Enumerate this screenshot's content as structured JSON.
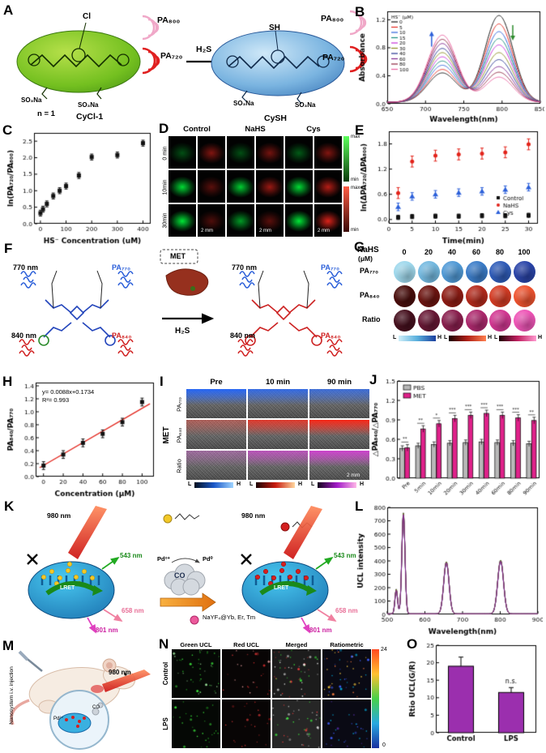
{
  "panels": {
    "A": {
      "label": "A",
      "pa800": "PA₈₀₀",
      "pa720": "PA₇₂₀",
      "cl": "Cl",
      "sh": "SH",
      "h2s": "H₂S",
      "so3na": "SO₃Na",
      "n1": "n = 1",
      "cycl1": "CyCl-1",
      "cysh": "CySH"
    },
    "B": {
      "label": "B"
    },
    "C": {
      "label": "C"
    },
    "D": {
      "label": "D",
      "cols": [
        "Control",
        "NaHS",
        "Cys"
      ],
      "rows": [
        "0 min",
        "10min",
        "30min"
      ],
      "max": "max",
      "min": "min",
      "scale": "2 mm"
    },
    "E": {
      "label": "E"
    },
    "F": {
      "label": "F",
      "nm770": "770 nm",
      "nm840": "840 nm",
      "pa770": "PA₇₇₀",
      "pa840": "PA₈₄₀",
      "met": "MET",
      "h2s": "H₂S"
    },
    "G": {
      "label": "G",
      "header1": "NaHS",
      "header2": "(μM)",
      "concs": [
        "0",
        "20",
        "40",
        "60",
        "80",
        "100"
      ],
      "rows": [
        "PA₇₇₀",
        "PA₈₄₀",
        "Ratio"
      ],
      "l": "L",
      "h": "H"
    },
    "H": {
      "label": "H",
      "eq": "y= 0.0088x+0.1734",
      "r2": "R²= 0.993"
    },
    "I": {
      "label": "I",
      "cols": [
        "Pre",
        "10 min",
        "90 min"
      ],
      "rows": [
        "PA₇₇₀",
        "PA₈₄₀",
        "Ratio"
      ],
      "met": "MET",
      "scale": "2 mm",
      "l": "L",
      "h": "H"
    },
    "J": {
      "label": "J"
    },
    "K": {
      "label": "K",
      "nm980": "980 nm",
      "lret": "LRET",
      "nm543": "543 nm",
      "nm658": "658 nm",
      "nm801": "801 nm",
      "co": "CO",
      "pd2": "Pd²⁺",
      "pd0": "Pd⁰",
      "np": "NaYF₄@Yb, Er, Tm"
    },
    "L": {
      "label": "L"
    },
    "M": {
      "label": "M",
      "inject": "Nanosystem i.v. injection",
      "nm980": "980 nm",
      "pd2": "Pd²⁺",
      "co": "CO"
    },
    "N": {
      "label": "N",
      "cols": [
        "Green UCL",
        "Red UCL",
        "Merged",
        "Ratiometric"
      ],
      "rows": [
        "Control",
        "LPS"
      ],
      "cmax": "24",
      "cmin": "0"
    },
    "O": {
      "label": "O"
    }
  },
  "chart_data": [
    {
      "id": "chartB",
      "type": "spectra",
      "xlabel": "Wavelength(nm)",
      "ylabel": "Absorbance",
      "xlim": [
        650,
        850
      ],
      "ylim": [
        0,
        1.32
      ],
      "xticks": [
        650,
        700,
        750,
        800,
        850
      ],
      "yticks": [
        0.0,
        0.4,
        0.8,
        1.2
      ],
      "ydec": 1,
      "base": 0.02,
      "legend_title": "HS⁻ (μM)",
      "centers": [
        722,
        796
      ],
      "widths": [
        27,
        26
      ],
      "series": [
        {
          "name": "0",
          "color": "#111111",
          "amps": [
            0.42,
            1.24
          ]
        },
        {
          "name": "5",
          "color": "#e2231a",
          "amps": [
            0.47,
            1.12
          ]
        },
        {
          "name": "10",
          "color": "#2b5fd9",
          "amps": [
            0.53,
            1.01
          ]
        },
        {
          "name": "15",
          "color": "#11897a",
          "amps": [
            0.59,
            0.91
          ]
        },
        {
          "name": "20",
          "color": "#c52bd9",
          "amps": [
            0.65,
            0.82
          ]
        },
        {
          "name": "30",
          "color": "#8a8a1e",
          "amps": [
            0.71,
            0.71
          ]
        },
        {
          "name": "40",
          "color": "#20308f",
          "amps": [
            0.77,
            0.61
          ]
        },
        {
          "name": "60",
          "color": "#7a1f8a",
          "amps": [
            0.84,
            0.51
          ]
        },
        {
          "name": "80",
          "color": "#8a1f3a",
          "amps": [
            0.9,
            0.43
          ]
        },
        {
          "name": "100",
          "color": "#e85d9c",
          "amps": [
            0.96,
            0.36
          ]
        }
      ],
      "arrows": [
        {
          "x": 708,
          "y": 0.92,
          "dir": "up",
          "color": "#2b5fd9"
        },
        {
          "x": 814,
          "y": 1.02,
          "dir": "down",
          "color": "#2e8b2e"
        }
      ]
    },
    {
      "id": "chartC",
      "type": "scatter",
      "xlabel": "HS⁻ Concentration (uM)",
      "ylabel": "ln(PA₇₂₀/PA₈₀₀)",
      "xlim": [
        -25,
        430
      ],
      "ylim": [
        0,
        2.75
      ],
      "xticks": [
        0,
        100,
        200,
        300,
        400
      ],
      "yticks": [
        0.0,
        0.5,
        1.0,
        1.5,
        2.0,
        2.5
      ],
      "ydec": 1,
      "series": [
        {
          "name": "data",
          "color": "#111111",
          "marker": "square",
          "err": 0.09,
          "points": [
            [
              0,
              0.32
            ],
            [
              10,
              0.44
            ],
            [
              25,
              0.6
            ],
            [
              50,
              0.84
            ],
            [
              75,
              1.0
            ],
            [
              100,
              1.14
            ],
            [
              150,
              1.46
            ],
            [
              200,
              2.02
            ],
            [
              300,
              2.08
            ],
            [
              400,
              2.44
            ]
          ]
        }
      ]
    },
    {
      "id": "chartE",
      "type": "scatter",
      "xlabel": "Time(min)",
      "ylabel": "ln(ΔPA₇₂₀/ΔPA₈₀₀)",
      "xlim": [
        0,
        32
      ],
      "ylim": [
        -0.1,
        2.1
      ],
      "xticks": [
        0,
        5,
        10,
        15,
        20,
        25,
        30
      ],
      "yticks": [
        0.0,
        0.6,
        1.2,
        1.8
      ],
      "ydec": 1,
      "legend": "br",
      "series": [
        {
          "name": "Control",
          "color": "#111111",
          "marker": "square",
          "err": 0.05,
          "points": [
            [
              2,
              0.05
            ],
            [
              5,
              0.07
            ],
            [
              10,
              0.08
            ],
            [
              15,
              0.08
            ],
            [
              20,
              0.09
            ],
            [
              25,
              0.09
            ],
            [
              30,
              0.1
            ]
          ]
        },
        {
          "name": "NaHS",
          "color": "#e2231a",
          "marker": "circle",
          "err": 0.13,
          "points": [
            [
              2,
              0.63
            ],
            [
              5,
              1.38
            ],
            [
              10,
              1.52
            ],
            [
              15,
              1.55
            ],
            [
              20,
              1.57
            ],
            [
              25,
              1.6
            ],
            [
              30,
              1.79
            ]
          ]
        },
        {
          "name": "Cys",
          "color": "#2b5fd9",
          "marker": "triangle",
          "err": 0.09,
          "points": [
            [
              2,
              0.3
            ],
            [
              5,
              0.55
            ],
            [
              10,
              0.6
            ],
            [
              15,
              0.64
            ],
            [
              20,
              0.67
            ],
            [
              25,
              0.71
            ],
            [
              30,
              0.77
            ]
          ]
        }
      ]
    },
    {
      "id": "chartH",
      "type": "scatter",
      "xlabel": "Concentration (μM)",
      "ylabel": "PA₈₄₀/PA₇₇₀",
      "xlim": [
        -8,
        112
      ],
      "ylim": [
        0,
        1.45
      ],
      "xticks": [
        0,
        20,
        40,
        60,
        80,
        100
      ],
      "yticks": [
        0.0,
        0.2,
        0.4,
        0.6,
        0.8,
        1.0,
        1.2,
        1.4
      ],
      "ydec": 1,
      "fit": {
        "slope": 0.0088,
        "intercept": 0.1734,
        "color": "#e2231a",
        "x0": -4,
        "x1": 108
      },
      "series": [
        {
          "name": "data",
          "color": "#111111",
          "marker": "square",
          "err": 0.06,
          "points": [
            [
              0,
              0.17
            ],
            [
              20,
              0.34
            ],
            [
              40,
              0.52
            ],
            [
              60,
              0.66
            ],
            [
              80,
              0.84
            ],
            [
              100,
              1.15
            ]
          ]
        }
      ]
    },
    {
      "id": "chartJ",
      "type": "groupbar",
      "ylabel": "△PA₈₄₀/△PA₇₇₀",
      "ylim": [
        0,
        1.5
      ],
      "yticks": [
        0.0,
        0.3,
        0.6,
        0.9,
        1.2,
        1.5
      ],
      "ydec": 1,
      "categories": [
        "Pre",
        "5min",
        "10min",
        "20min",
        "30min",
        "40min",
        "60min",
        "80min",
        "90min"
      ],
      "series": [
        {
          "name": "PBS",
          "color": "#b8b8b8",
          "err": 0.04,
          "values": [
            0.46,
            0.5,
            0.52,
            0.54,
            0.55,
            0.56,
            0.55,
            0.54,
            0.53
          ]
        },
        {
          "name": "MET",
          "color": "#e0218a",
          "err": 0.05,
          "values": [
            0.47,
            0.76,
            0.84,
            0.92,
            0.97,
            1.0,
            0.97,
            0.93,
            0.89
          ]
        }
      ],
      "sig": [
        "**",
        "**",
        "*",
        "***",
        "***",
        "***",
        "***",
        "***",
        "**"
      ]
    },
    {
      "id": "chartL",
      "type": "spectra",
      "xlabel": "Wavelength(nm)",
      "ylabel": "UCL intensity",
      "xlim": [
        500,
        900
      ],
      "ylim": [
        0,
        800
      ],
      "xticks": [
        500,
        600,
        700,
        800,
        900
      ],
      "yticks": [
        0,
        100,
        200,
        300,
        400,
        500,
        600,
        700,
        800
      ],
      "ydec": 0,
      "base": 4,
      "centers": [
        524,
        543,
        657,
        801
      ],
      "widths": [
        5,
        6,
        10,
        11
      ],
      "series": [
        {
          "name": "a",
          "color": "#111111",
          "amps": [
            185,
            755,
            390,
            402
          ]
        },
        {
          "name": "b",
          "color": "#e2231a",
          "amps": [
            178,
            745,
            384,
            396
          ]
        },
        {
          "name": "c",
          "color": "#2b5fd9",
          "amps": [
            172,
            735,
            378,
            390
          ]
        },
        {
          "name": "d",
          "color": "#11897a",
          "amps": [
            180,
            748,
            386,
            399
          ]
        },
        {
          "name": "e",
          "color": "#c52bd9",
          "amps": [
            175,
            740,
            381,
            393
          ]
        },
        {
          "name": "f",
          "color": "#8a8a1e",
          "amps": [
            182,
            751,
            388,
            400
          ]
        },
        {
          "name": "g",
          "color": "#7a1f8a",
          "amps": [
            176,
            743,
            383,
            395
          ]
        }
      ]
    },
    {
      "id": "chartO",
      "type": "bar",
      "ylabel": "Rtio UCL(G/R)",
      "ylim": [
        0,
        25
      ],
      "yticks": [
        0,
        5,
        10,
        15,
        20,
        25
      ],
      "ydec": 0,
      "categories": [
        "Control",
        "LPS"
      ],
      "values": [
        19,
        11.5
      ],
      "errors": [
        2.6,
        1.4
      ],
      "color": "#9b2fae",
      "annotation": "n.s."
    }
  ],
  "tiles": {
    "D": [
      [
        {
          "c": "g",
          "i": 0.3
        },
        {
          "c": "r",
          "i": 0.5
        },
        {
          "c": "g",
          "i": 0.3
        },
        {
          "c": "r",
          "i": 0.45
        },
        {
          "c": "g",
          "i": 0.35
        },
        {
          "c": "r",
          "i": 0.5
        }
      ],
      [
        {
          "c": "g",
          "i": 0.85
        },
        {
          "c": "r",
          "i": 0.35
        },
        {
          "c": "g",
          "i": 0.8
        },
        {
          "c": "r",
          "i": 0.6
        },
        {
          "c": "g",
          "i": 0.85
        },
        {
          "c": "r",
          "i": 0.7
        }
      ],
      [
        {
          "c": "g",
          "i": 0.9
        },
        {
          "c": "r",
          "i": 0.3
        },
        {
          "c": "g",
          "i": 0.6
        },
        {
          "c": "r",
          "i": 0.35
        },
        {
          "c": "g",
          "i": 0.9
        },
        {
          "c": "r",
          "i": 0.85
        }
      ]
    ],
    "G": {
      "pa770": [
        "#9fd8ec",
        "#74b9e0",
        "#519ad6",
        "#3b7cc8",
        "#2f5cb8",
        "#2a44a8"
      ],
      "pa840": [
        "#4a0e0c",
        "#6d1410",
        "#8f1c14",
        "#b42a1c",
        "#d43c24",
        "#ef5430"
      ],
      "ratio": [
        "#46101e",
        "#671734",
        "#8a1f4e",
        "#ae296e",
        "#d23892",
        "#ee55b6"
      ]
    },
    "I": {
      "rows": [
        {
          "color": "#1e64ff",
          "alpha": [
            0.92,
            0.78,
            0.68
          ]
        },
        {
          "color": "#ff2211",
          "alpha": [
            0.35,
            0.75,
            0.95
          ]
        },
        {
          "color": "#d040d0",
          "alpha": [
            0.35,
            0.7,
            0.95
          ]
        }
      ]
    },
    "N": {
      "rows": [
        [
          {
            "n": 46,
            "bg": "#050805",
            "cols": [
              "#3ce53c",
              "#28c028",
              "#9fe89f"
            ]
          },
          {
            "n": 26,
            "bg": "#080505",
            "cols": [
              "#e53c3c",
              "#c02828",
              "#e89f9f"
            ]
          },
          {
            "n": 55,
            "bg": "#1c1c1c",
            "cols": [
              "#3ce53c",
              "#e53c3c",
              "#e8e8e8"
            ]
          },
          {
            "n": 48,
            "bg": "#0a0a14",
            "cols": [
              "#4060ff",
              "#00c8ff",
              "#ffd040",
              "#ff8040"
            ]
          }
        ],
        [
          {
            "n": 28,
            "bg": "#050805",
            "cols": [
              "#3ce53c",
              "#28c028"
            ]
          },
          {
            "n": 22,
            "bg": "#080505",
            "cols": [
              "#e53c3c",
              "#c02828"
            ]
          },
          {
            "n": 42,
            "bg": "#262626",
            "cols": [
              "#3ce53c",
              "#e53c3c",
              "#d8d8d8"
            ]
          },
          {
            "n": 30,
            "bg": "#0a0a14",
            "cols": [
              "#4060ff",
              "#00c8ff",
              "#8040ff"
            ]
          }
        ]
      ]
    }
  }
}
